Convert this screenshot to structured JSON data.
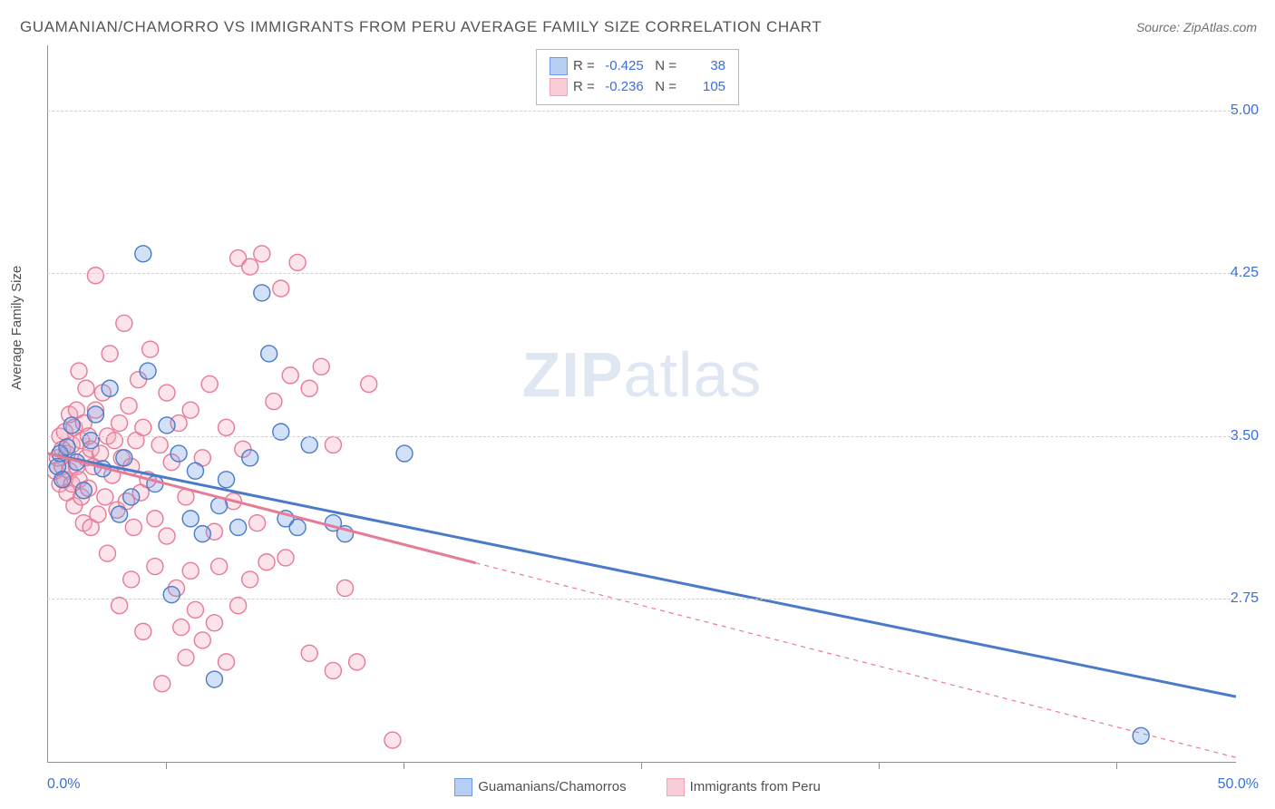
{
  "title": "GUAMANIAN/CHAMORRO VS IMMIGRANTS FROM PERU AVERAGE FAMILY SIZE CORRELATION CHART",
  "source": "Source: ZipAtlas.com",
  "ylabel": "Average Family Size",
  "watermark_a": "ZIP",
  "watermark_b": "atlas",
  "chart": {
    "type": "scatter",
    "background_color": "#ffffff",
    "grid_color": "#d0d0d0",
    "axis_color": "#909090",
    "label_color": "#505050",
    "tick_label_color": "#3b6fd6",
    "title_fontsize": 17,
    "tick_fontsize": 16,
    "label_fontsize": 15,
    "xlim": [
      0,
      50
    ],
    "ylim": [
      2.0,
      5.3
    ],
    "xmin_label": "0.0%",
    "xmax_label": "50.0%",
    "yticks": [
      2.75,
      3.5,
      4.25,
      5.0
    ],
    "ytick_labels": [
      "2.75",
      "3.50",
      "4.25",
      "5.00"
    ],
    "xtick_positions": [
      5,
      15,
      25,
      35,
      45
    ],
    "marker_radius": 9,
    "marker_fill_opacity": 0.3,
    "line_width_solid": 3,
    "series": [
      {
        "name": "Guamanians/Chamorros",
        "color": "#6b9be8",
        "stroke": "#4a7bc8",
        "legend_label": "Guamanians/Chamorros",
        "R": "-0.425",
        "N": "38",
        "trend": {
          "x1": 0,
          "y1": 3.42,
          "x2": 50,
          "y2": 2.3,
          "solid_until_x": 50,
          "dash": ""
        },
        "points": [
          [
            0.4,
            3.36
          ],
          [
            0.5,
            3.42
          ],
          [
            0.6,
            3.3
          ],
          [
            0.8,
            3.45
          ],
          [
            1.0,
            3.55
          ],
          [
            1.2,
            3.38
          ],
          [
            1.5,
            3.25
          ],
          [
            1.8,
            3.48
          ],
          [
            2.0,
            3.6
          ],
          [
            2.3,
            3.35
          ],
          [
            2.6,
            3.72
          ],
          [
            3.0,
            3.14
          ],
          [
            3.2,
            3.4
          ],
          [
            3.5,
            3.22
          ],
          [
            4.0,
            4.34
          ],
          [
            4.2,
            3.8
          ],
          [
            4.5,
            3.28
          ],
          [
            5.0,
            3.55
          ],
          [
            5.2,
            2.77
          ],
          [
            5.5,
            3.42
          ],
          [
            6.0,
            3.12
          ],
          [
            6.2,
            3.34
          ],
          [
            6.5,
            3.05
          ],
          [
            7.0,
            2.38
          ],
          [
            7.2,
            3.18
          ],
          [
            7.5,
            3.3
          ],
          [
            8.0,
            3.08
          ],
          [
            8.5,
            3.4
          ],
          [
            9.0,
            4.16
          ],
          [
            9.3,
            3.88
          ],
          [
            9.8,
            3.52
          ],
          [
            10.0,
            3.12
          ],
          [
            10.5,
            3.08
          ],
          [
            11.0,
            3.46
          ],
          [
            12.0,
            3.1
          ],
          [
            12.5,
            3.05
          ],
          [
            15.0,
            3.42
          ],
          [
            46.0,
            2.12
          ]
        ]
      },
      {
        "name": "Immigrants from Peru",
        "color": "#f4a6b8",
        "stroke": "#e77a95",
        "legend_label": "Immigrants from Peru",
        "R": "-0.236",
        "N": "105",
        "trend": {
          "x1": 0,
          "y1": 3.42,
          "x2": 50,
          "y2": 2.02,
          "solid_until_x": 18,
          "dash": "5,5"
        },
        "points": [
          [
            0.3,
            3.34
          ],
          [
            0.4,
            3.4
          ],
          [
            0.5,
            3.28
          ],
          [
            0.5,
            3.5
          ],
          [
            0.6,
            3.36
          ],
          [
            0.6,
            3.44
          ],
          [
            0.7,
            3.3
          ],
          [
            0.7,
            3.52
          ],
          [
            0.8,
            3.24
          ],
          [
            0.8,
            3.42
          ],
          [
            0.9,
            3.6
          ],
          [
            0.9,
            3.34
          ],
          [
            1.0,
            3.28
          ],
          [
            1.0,
            3.46
          ],
          [
            1.1,
            3.54
          ],
          [
            1.1,
            3.18
          ],
          [
            1.2,
            3.36
          ],
          [
            1.2,
            3.62
          ],
          [
            1.3,
            3.8
          ],
          [
            1.3,
            3.3
          ],
          [
            1.4,
            3.22
          ],
          [
            1.4,
            3.48
          ],
          [
            1.5,
            3.56
          ],
          [
            1.5,
            3.1
          ],
          [
            1.6,
            3.4
          ],
          [
            1.6,
            3.72
          ],
          [
            1.7,
            3.26
          ],
          [
            1.7,
            3.5
          ],
          [
            1.8,
            3.44
          ],
          [
            1.8,
            3.08
          ],
          [
            1.9,
            3.36
          ],
          [
            2.0,
            3.62
          ],
          [
            2.0,
            4.24
          ],
          [
            2.1,
            3.14
          ],
          [
            2.2,
            3.42
          ],
          [
            2.3,
            3.7
          ],
          [
            2.4,
            3.22
          ],
          [
            2.5,
            3.5
          ],
          [
            2.5,
            2.96
          ],
          [
            2.6,
            3.88
          ],
          [
            2.7,
            3.32
          ],
          [
            2.8,
            3.48
          ],
          [
            2.9,
            3.16
          ],
          [
            3.0,
            3.56
          ],
          [
            3.0,
            2.72
          ],
          [
            3.1,
            3.4
          ],
          [
            3.2,
            4.02
          ],
          [
            3.3,
            3.2
          ],
          [
            3.4,
            3.64
          ],
          [
            3.5,
            3.36
          ],
          [
            3.5,
            2.84
          ],
          [
            3.6,
            3.08
          ],
          [
            3.7,
            3.48
          ],
          [
            3.8,
            3.76
          ],
          [
            3.9,
            3.24
          ],
          [
            4.0,
            3.54
          ],
          [
            4.0,
            2.6
          ],
          [
            4.2,
            3.3
          ],
          [
            4.3,
            3.9
          ],
          [
            4.5,
            3.12
          ],
          [
            4.5,
            2.9
          ],
          [
            4.7,
            3.46
          ],
          [
            4.8,
            2.36
          ],
          [
            5.0,
            3.7
          ],
          [
            5.0,
            3.04
          ],
          [
            5.2,
            3.38
          ],
          [
            5.4,
            2.8
          ],
          [
            5.5,
            3.56
          ],
          [
            5.6,
            2.62
          ],
          [
            5.8,
            3.22
          ],
          [
            5.8,
            2.48
          ],
          [
            6.0,
            3.62
          ],
          [
            6.0,
            2.88
          ],
          [
            6.2,
            2.7
          ],
          [
            6.5,
            3.4
          ],
          [
            6.5,
            2.56
          ],
          [
            6.8,
            3.74
          ],
          [
            7.0,
            3.06
          ],
          [
            7.0,
            2.64
          ],
          [
            7.2,
            2.9
          ],
          [
            7.5,
            3.54
          ],
          [
            7.5,
            2.46
          ],
          [
            7.8,
            3.2
          ],
          [
            8.0,
            2.72
          ],
          [
            8.0,
            4.32
          ],
          [
            8.2,
            3.44
          ],
          [
            8.5,
            2.84
          ],
          [
            8.5,
            4.28
          ],
          [
            8.8,
            3.1
          ],
          [
            9.0,
            4.34
          ],
          [
            9.2,
            2.92
          ],
          [
            9.5,
            3.66
          ],
          [
            9.8,
            4.18
          ],
          [
            10.0,
            2.94
          ],
          [
            10.2,
            3.78
          ],
          [
            10.5,
            4.3
          ],
          [
            11.0,
            2.5
          ],
          [
            11.0,
            3.72
          ],
          [
            11.5,
            3.82
          ],
          [
            12.0,
            2.42
          ],
          [
            12.0,
            3.46
          ],
          [
            12.5,
            2.8
          ],
          [
            13.0,
            2.46
          ],
          [
            13.5,
            3.74
          ],
          [
            14.5,
            2.1
          ]
        ]
      }
    ]
  },
  "stats_box": {
    "rows": [
      {
        "swatch_fill": "#b6cff2",
        "swatch_stroke": "#6b9be8",
        "R": "-0.425",
        "N": "38"
      },
      {
        "swatch_fill": "#f8cdd7",
        "swatch_stroke": "#f4a6b8",
        "R": "-0.236",
        "N": "105"
      }
    ]
  },
  "bottom_legend": [
    {
      "swatch_fill": "#b6cff2",
      "swatch_stroke": "#6b9be8",
      "label": "Guamanians/Chamorros"
    },
    {
      "swatch_fill": "#f8cdd7",
      "swatch_stroke": "#f4a6b8",
      "label": "Immigrants from Peru"
    }
  ]
}
